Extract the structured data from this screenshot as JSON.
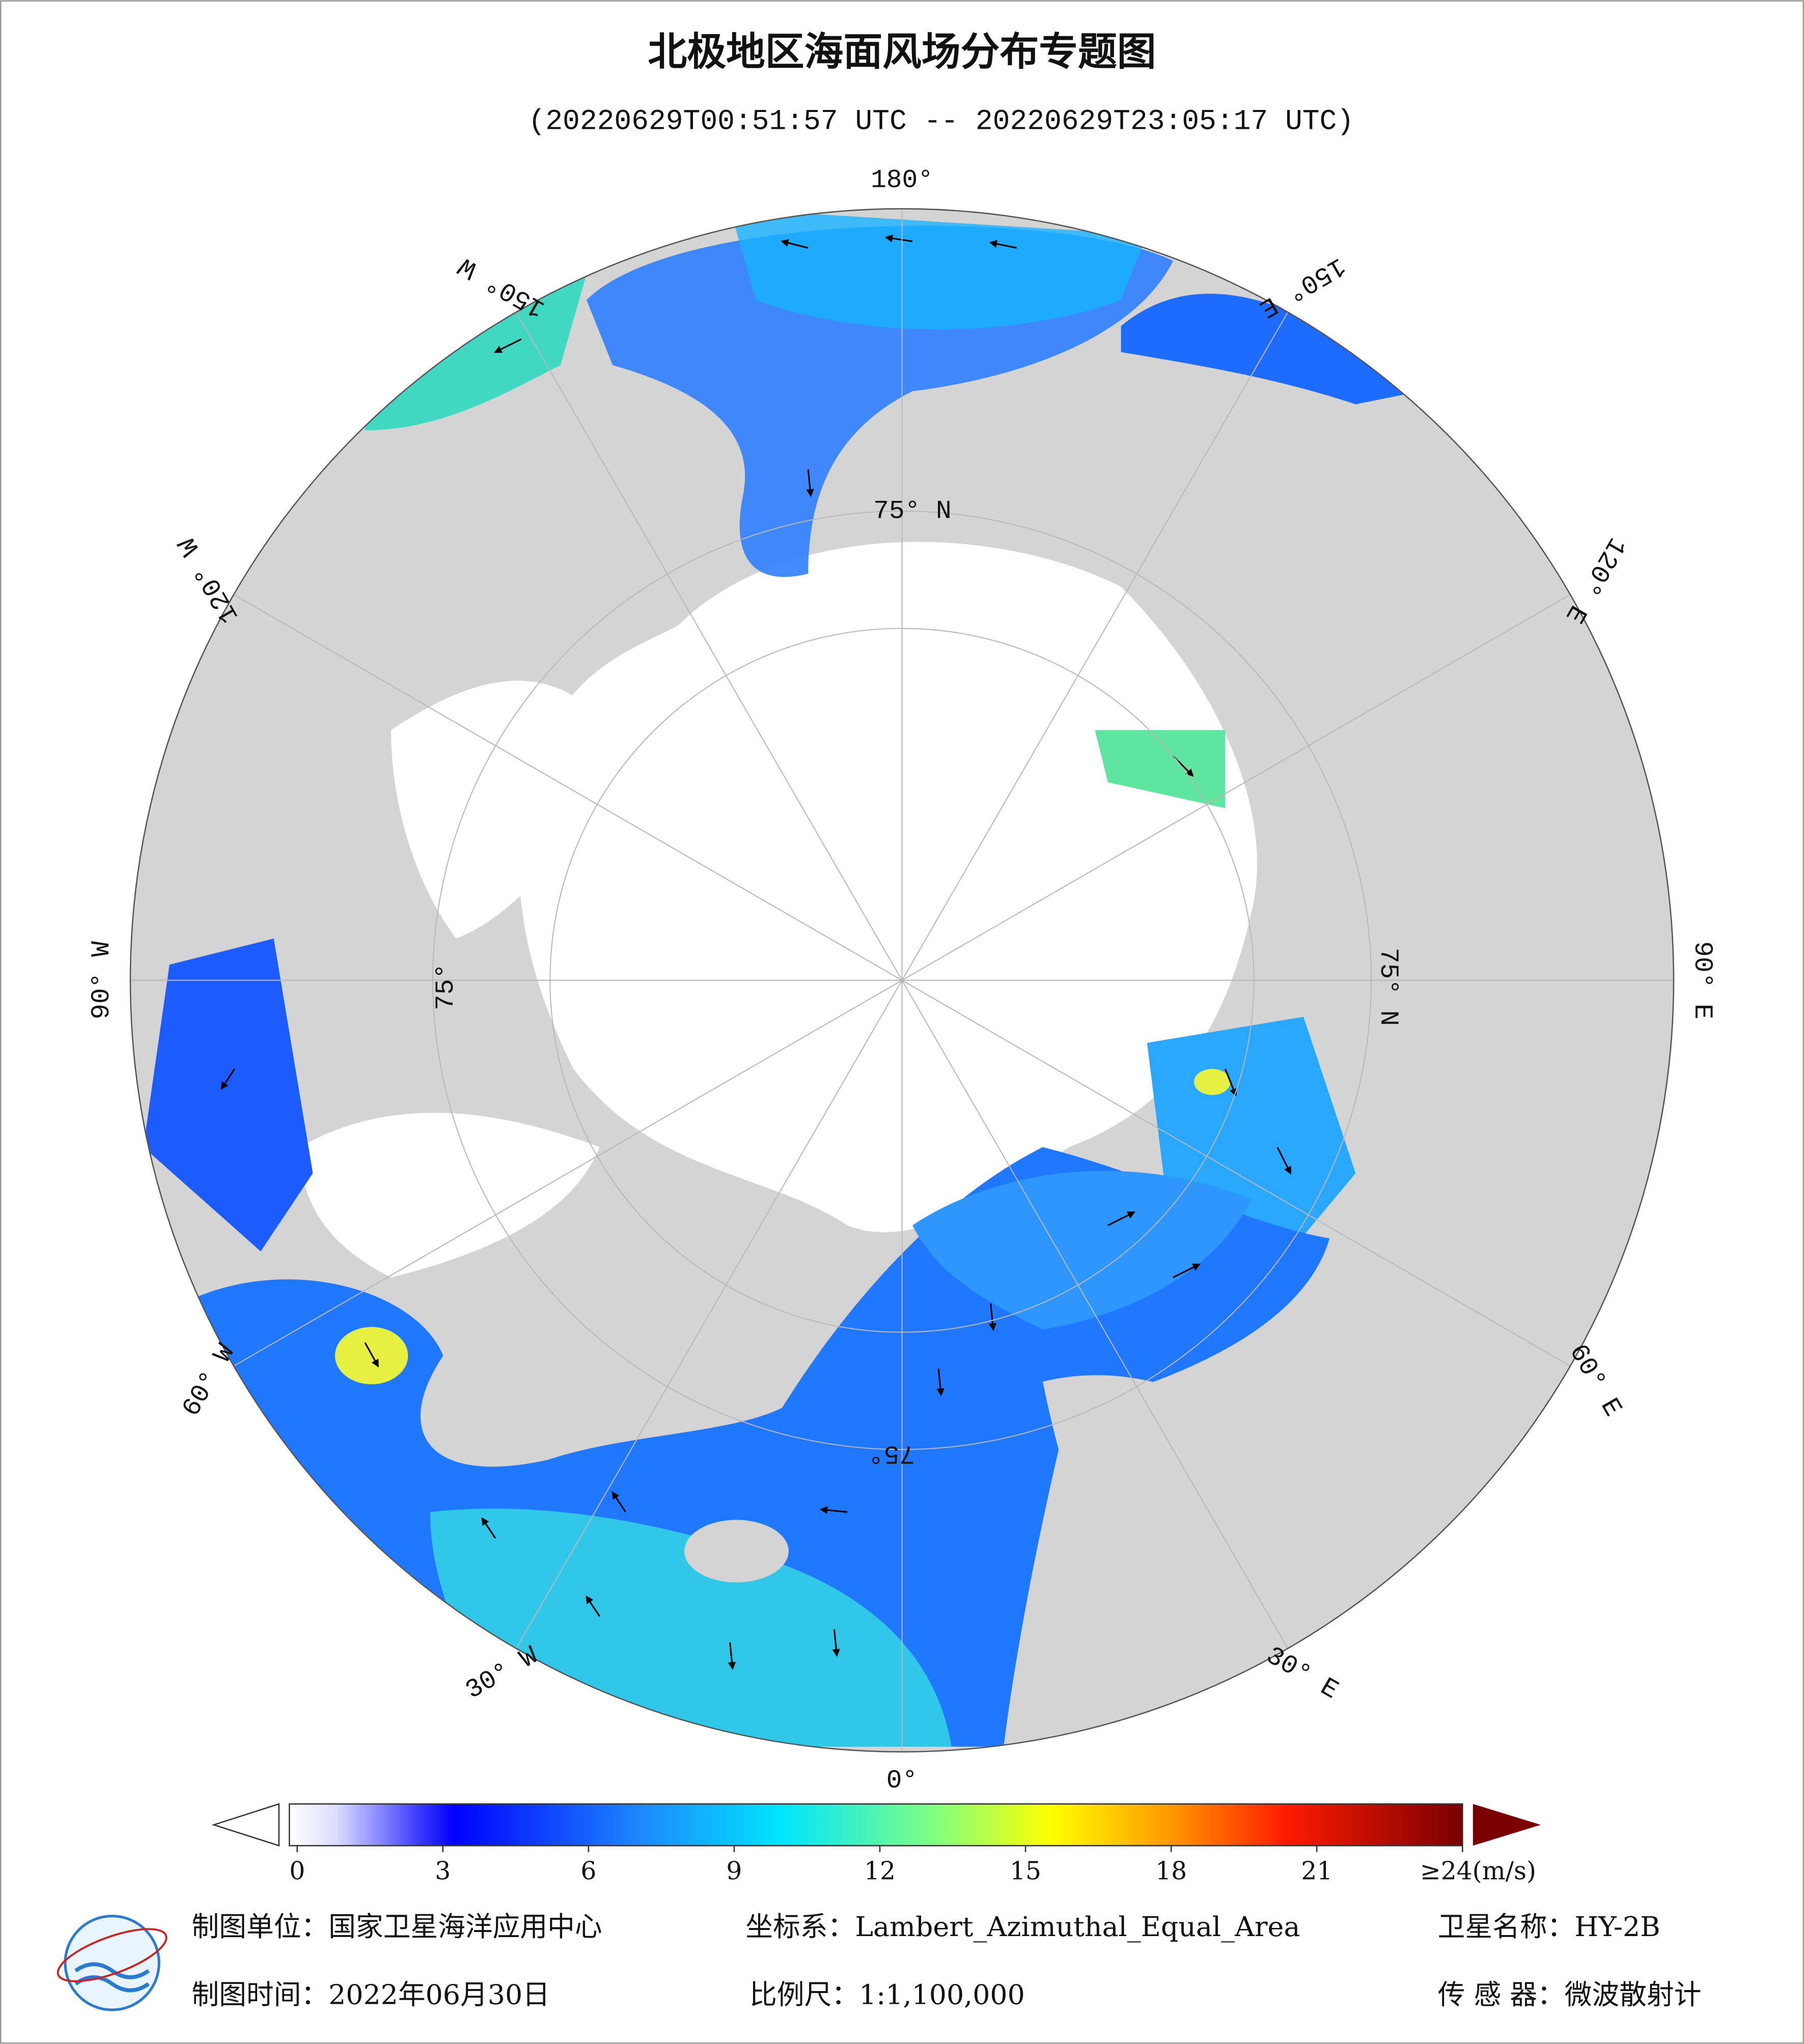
{
  "header": {
    "title": "北极地区海面风场分布专题图",
    "subtitle": "(20220629T00:51:57 UTC -- 20220629T23:05:17 UTC)"
  },
  "map": {
    "meridian_labels": [
      "0°",
      "30° E",
      "60° E",
      "90° E",
      "120° E",
      "150° E",
      "180°",
      "150° W",
      "120° W",
      "90° W",
      "60° W",
      "30° W"
    ],
    "parallel_labels": [
      "75° N",
      "75° N",
      "75°",
      "75°"
    ]
  },
  "colorbar": {
    "range": [
      0,
      24
    ],
    "ticks": [
      0,
      3,
      6,
      9,
      12,
      15,
      18,
      21,
      {
        "value": 24,
        "label": "≥24(m/s)"
      }
    ]
  },
  "footer": {
    "unit": "制图单位：国家卫星海洋应用中心",
    "projection": "坐标系：Lambert_Azimuthal_Equal_Area",
    "satellite": "卫星名称：HY-2B",
    "date": "制图时间：2022年06月30日",
    "scale": "比例尺：1:1,100,000",
    "sensor": "传 感 器：微波散射计"
  }
}
